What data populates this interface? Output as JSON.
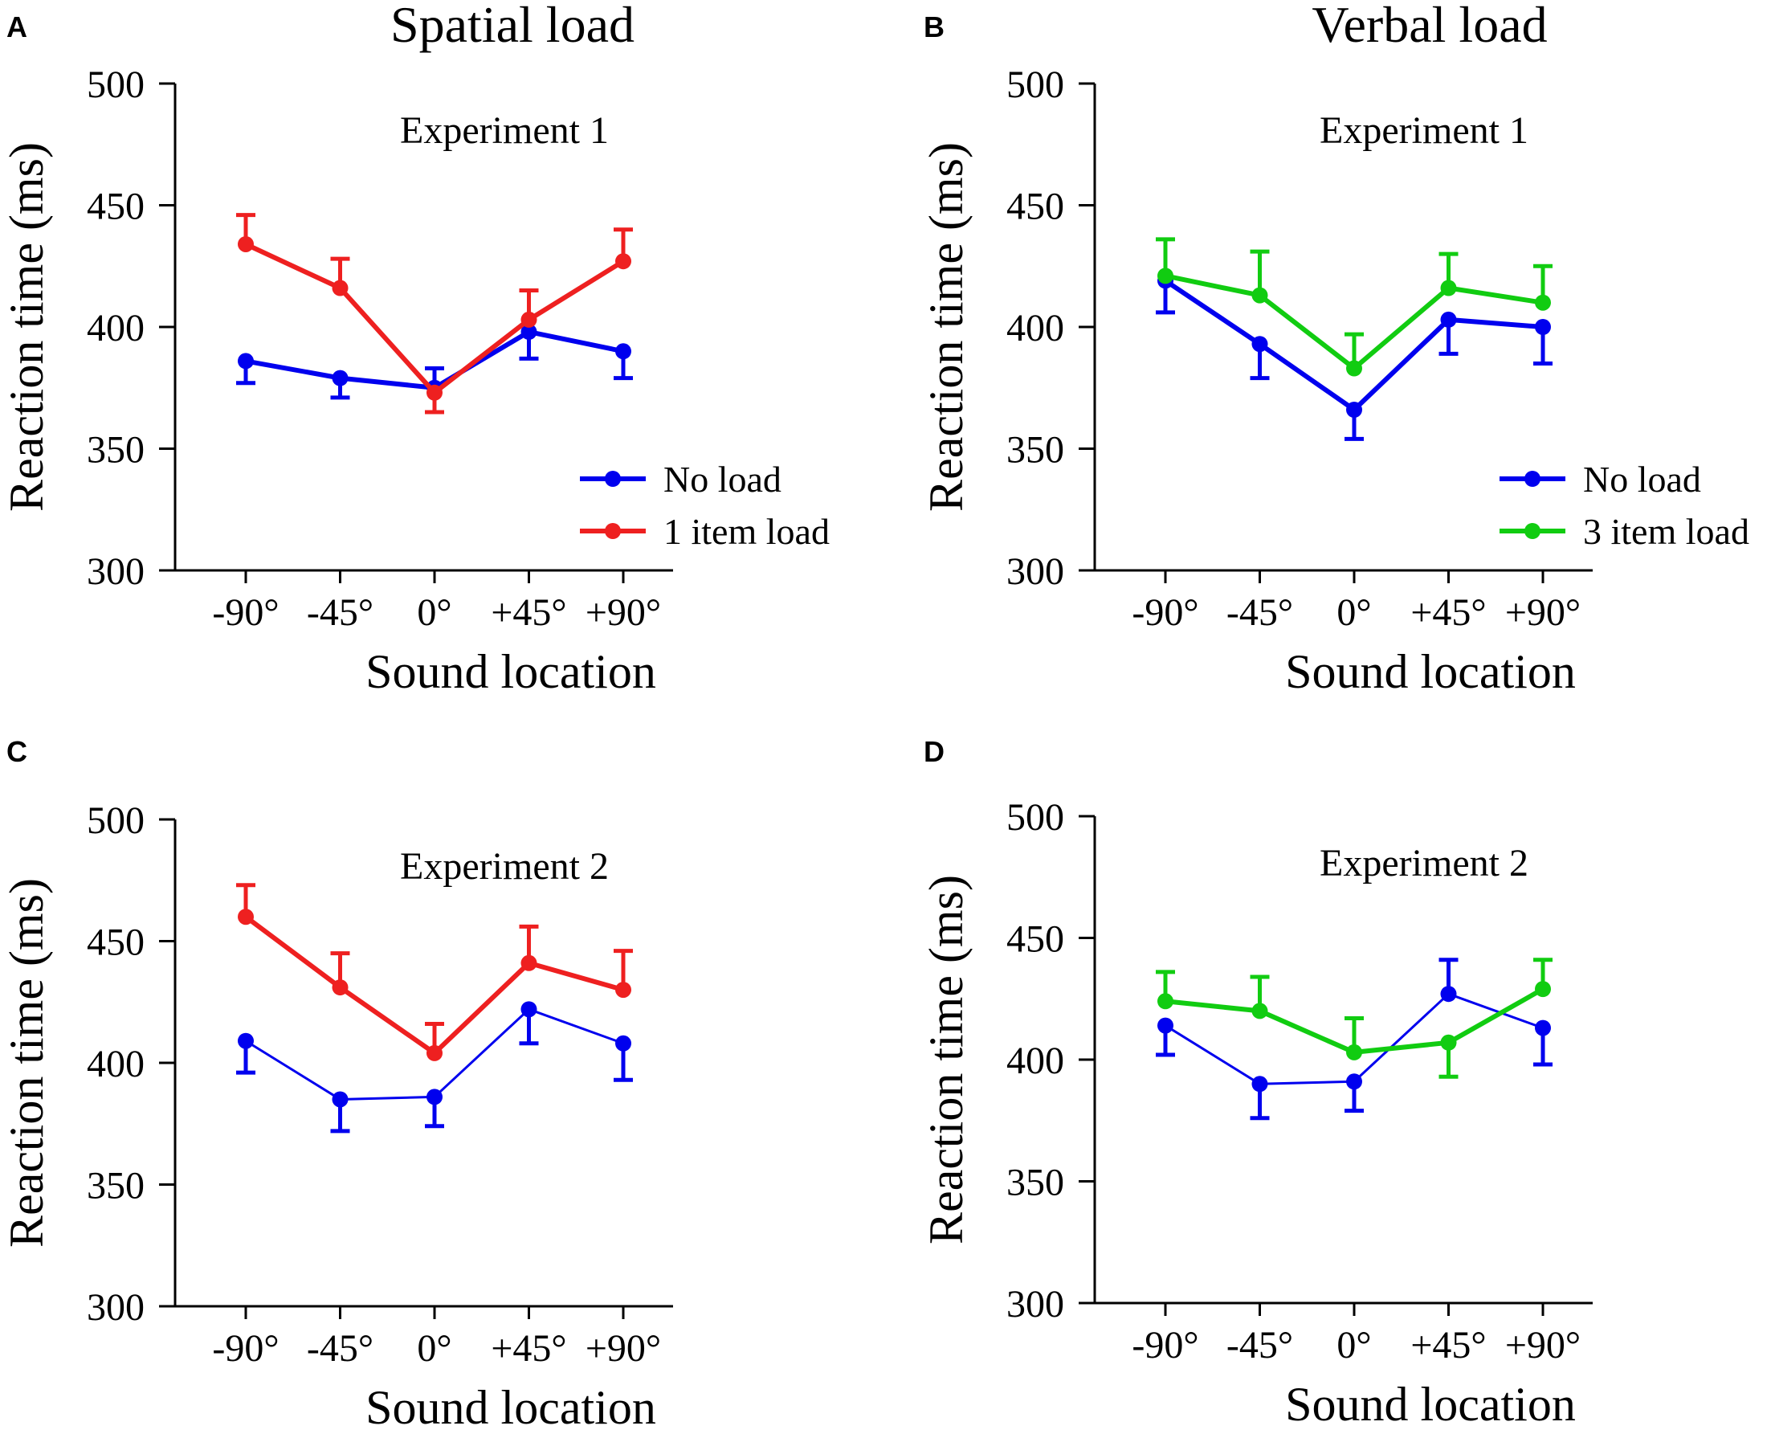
{
  "figure": {
    "column_titles": [
      "Spatial load",
      "Verbal load"
    ]
  },
  "colors": {
    "no_load": "#0000ee",
    "spatial_load": "#ee2020",
    "verbal_load": "#11cc11",
    "axis": "#000000"
  },
  "chart_data": [
    {
      "panel": "A",
      "type": "line",
      "title": "Experiment 1",
      "column_title": "Spatial load",
      "xlabel": "Sound location",
      "ylabel": "Reaction time (ms)",
      "categories": [
        "-90°",
        "-45°",
        "0°",
        "+45°",
        "+90°"
      ],
      "ylim": [
        300,
        500
      ],
      "yticks": [
        "300",
        "350",
        "400",
        "450",
        "500"
      ],
      "legend_position": "bottom-right",
      "series": [
        {
          "name": "No load",
          "color": "#0000ee",
          "style": "thick",
          "values": [
            386,
            379,
            375,
            398,
            390
          ],
          "error": [
            9,
            8,
            8,
            11,
            11
          ]
        },
        {
          "name": "1 item load",
          "color": "#ee2020",
          "style": "thick",
          "values": [
            434,
            416,
            373,
            403,
            427
          ],
          "error": [
            12,
            12,
            8,
            12,
            13
          ]
        }
      ]
    },
    {
      "panel": "B",
      "type": "line",
      "title": "Experiment 1",
      "column_title": "Verbal load",
      "xlabel": "Sound location",
      "ylabel": "Reaction time (ms)",
      "categories": [
        "-90°",
        "-45°",
        "0°",
        "+45°",
        "+90°"
      ],
      "ylim": [
        300,
        500
      ],
      "yticks": [
        "300",
        "350",
        "400",
        "450",
        "500"
      ],
      "legend_position": "bottom-right",
      "series": [
        {
          "name": "No load",
          "color": "#0000ee",
          "style": "thick",
          "values": [
            419,
            393,
            366,
            403,
            400
          ],
          "error": [
            13,
            14,
            12,
            14,
            15
          ]
        },
        {
          "name": "3 item load",
          "color": "#11cc11",
          "style": "thick",
          "values": [
            421,
            413,
            383,
            416,
            410
          ],
          "error": [
            15,
            18,
            14,
            14,
            15
          ]
        }
      ]
    },
    {
      "panel": "C",
      "type": "line",
      "title": "Experiment 2",
      "xlabel": "Sound location",
      "ylabel": "Reaction time (ms)",
      "categories": [
        "-90°",
        "-45°",
        "0°",
        "+45°",
        "+90°"
      ],
      "ylim": [
        300,
        500
      ],
      "yticks": [
        "300",
        "350",
        "400",
        "450",
        "500"
      ],
      "series": [
        {
          "name": "No load",
          "color": "#0000ee",
          "style": "thin",
          "values": [
            409,
            385,
            386,
            422,
            408
          ],
          "error": [
            13,
            13,
            12,
            14,
            15
          ]
        },
        {
          "name": "1 item load",
          "color": "#ee2020",
          "style": "thick",
          "values": [
            460,
            431,
            404,
            441,
            430
          ],
          "error": [
            13,
            14,
            12,
            15,
            16
          ]
        }
      ]
    },
    {
      "panel": "D",
      "type": "line",
      "title": "Experiment 2",
      "xlabel": "Sound location",
      "ylabel": "Reaction time (ms)",
      "categories": [
        "-90°",
        "-45°",
        "0°",
        "+45°",
        "+90°"
      ],
      "ylim": [
        300,
        500
      ],
      "yticks": [
        "300",
        "350",
        "400",
        "450",
        "500"
      ],
      "series": [
        {
          "name": "No load",
          "color": "#0000ee",
          "style": "thin",
          "values": [
            414,
            390,
            391,
            427,
            413
          ],
          "error": [
            12,
            14,
            12,
            14,
            15
          ]
        },
        {
          "name": "3 item load",
          "color": "#11cc11",
          "style": "thick",
          "values": [
            424,
            420,
            403,
            407,
            429
          ],
          "error": [
            12,
            14,
            14,
            14,
            12
          ]
        }
      ]
    }
  ]
}
